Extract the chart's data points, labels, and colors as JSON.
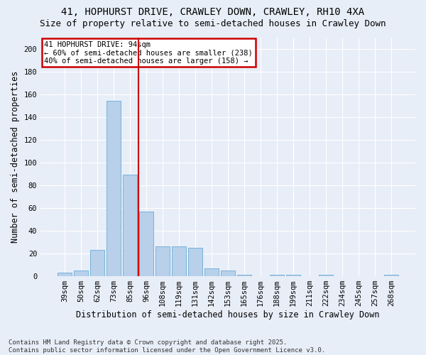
{
  "title_line1": "41, HOPHURST DRIVE, CRAWLEY DOWN, CRAWLEY, RH10 4XA",
  "title_line2": "Size of property relative to semi-detached houses in Crawley Down",
  "xlabel": "Distribution of semi-detached houses by size in Crawley Down",
  "ylabel": "Number of semi-detached properties",
  "footnote": "Contains HM Land Registry data © Crown copyright and database right 2025.\nContains public sector information licensed under the Open Government Licence v3.0.",
  "bins": [
    "39sqm",
    "50sqm",
    "62sqm",
    "73sqm",
    "85sqm",
    "96sqm",
    "108sqm",
    "119sqm",
    "131sqm",
    "142sqm",
    "153sqm",
    "165sqm",
    "176sqm",
    "188sqm",
    "199sqm",
    "211sqm",
    "222sqm",
    "234sqm",
    "245sqm",
    "257sqm",
    "268sqm"
  ],
  "values": [
    3,
    5,
    23,
    154,
    89,
    57,
    26,
    26,
    25,
    7,
    5,
    1,
    0,
    1,
    1,
    0,
    1,
    0,
    0,
    0,
    1
  ],
  "bar_color": "#b8d0ea",
  "bar_edge_color": "#6aaad4",
  "vline_color": "#cc0000",
  "annotation_text": "41 HOPHURST DRIVE: 94sqm\n← 60% of semi-detached houses are smaller (238)\n40% of semi-detached houses are larger (158) →",
  "annotation_box_edgecolor": "#cc0000",
  "annotation_text_color": "black",
  "ylim_max": 210,
  "yticks": [
    0,
    20,
    40,
    60,
    80,
    100,
    120,
    140,
    160,
    180,
    200
  ],
  "background_color": "#e8eef8",
  "grid_color": "#ffffff",
  "title_fontsize": 10,
  "subtitle_fontsize": 9,
  "axis_label_fontsize": 8.5,
  "tick_fontsize": 7.5,
  "annotation_fontsize": 7.5,
  "footnote_fontsize": 6.5,
  "vline_x": 4.5
}
